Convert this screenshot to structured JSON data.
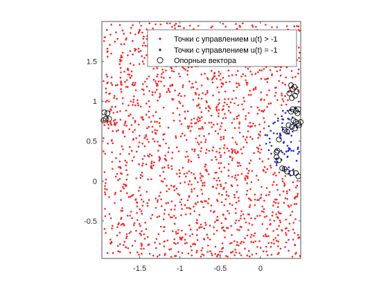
{
  "chart_data": {
    "type": "scatter",
    "title": "",
    "xlabel": "",
    "ylabel": "",
    "xlim": [
      -1.97,
      0.5
    ],
    "ylim": [
      -0.97,
      2.0
    ],
    "xticks": [
      -1.5,
      -1,
      -0.5,
      0
    ],
    "xtick_labels": [
      "-1.5",
      "-1",
      "-0.5",
      "0"
    ],
    "yticks": [
      -0.5,
      0,
      0.5,
      1,
      1.5
    ],
    "ytick_labels": [
      "-0.5",
      "0",
      "0.5",
      "1",
      "1.5"
    ],
    "grid": false,
    "legend_position": "top-right",
    "colors": {
      "red_points": "#ff2020",
      "blue_points": "#1f1fd8",
      "support_marker": "#000000",
      "axes": "#262626",
      "background": "#ffffff"
    },
    "series": [
      {
        "name": "Точки с управлением u(t) > -1",
        "marker": "dot",
        "generation": "uniform fill of the axes region excluding the blue region",
        "approx_count": 1400
      },
      {
        "name": "Точки с управлением u(t) = -1",
        "marker": "dot",
        "region": "disk centered at (0.5, 0.5) with radius 0.45, clipped at x = 0.5",
        "approx_count": 80
      },
      {
        "name": "Опорные вектора",
        "marker": "open-circle",
        "points": [
          [
            -1.94,
            0.86
          ],
          [
            -1.9,
            0.85
          ],
          [
            -1.92,
            0.78
          ],
          [
            -1.88,
            0.78
          ],
          [
            -1.95,
            0.76
          ],
          [
            0.38,
            1.2
          ],
          [
            0.42,
            1.18
          ],
          [
            0.4,
            1.15
          ],
          [
            0.45,
            1.12
          ],
          [
            0.36,
            1.1
          ],
          [
            0.43,
            1.07
          ],
          [
            0.39,
            1.04
          ],
          [
            0.47,
            0.9
          ],
          [
            0.44,
            0.88
          ],
          [
            0.4,
            0.9
          ],
          [
            0.38,
            0.87
          ],
          [
            0.46,
            0.85
          ],
          [
            0.41,
            0.76
          ],
          [
            0.44,
            0.74
          ],
          [
            0.47,
            0.72
          ],
          [
            0.35,
            0.7
          ],
          [
            0.39,
            0.68
          ],
          [
            0.43,
            0.66
          ],
          [
            0.3,
            0.64
          ],
          [
            0.33,
            0.62
          ],
          [
            0.5,
            0.74
          ],
          [
            0.48,
            0.7
          ],
          [
            0.23,
            0.52
          ],
          [
            0.21,
            0.38
          ],
          [
            0.2,
            0.36
          ],
          [
            0.2,
            0.3
          ],
          [
            0.23,
            0.26
          ],
          [
            0.27,
            0.16
          ],
          [
            0.3,
            0.15
          ],
          [
            0.33,
            0.12
          ],
          [
            0.39,
            0.1
          ],
          [
            0.47,
            0.06
          ],
          [
            0.44,
            0.1
          ]
        ]
      }
    ]
  }
}
